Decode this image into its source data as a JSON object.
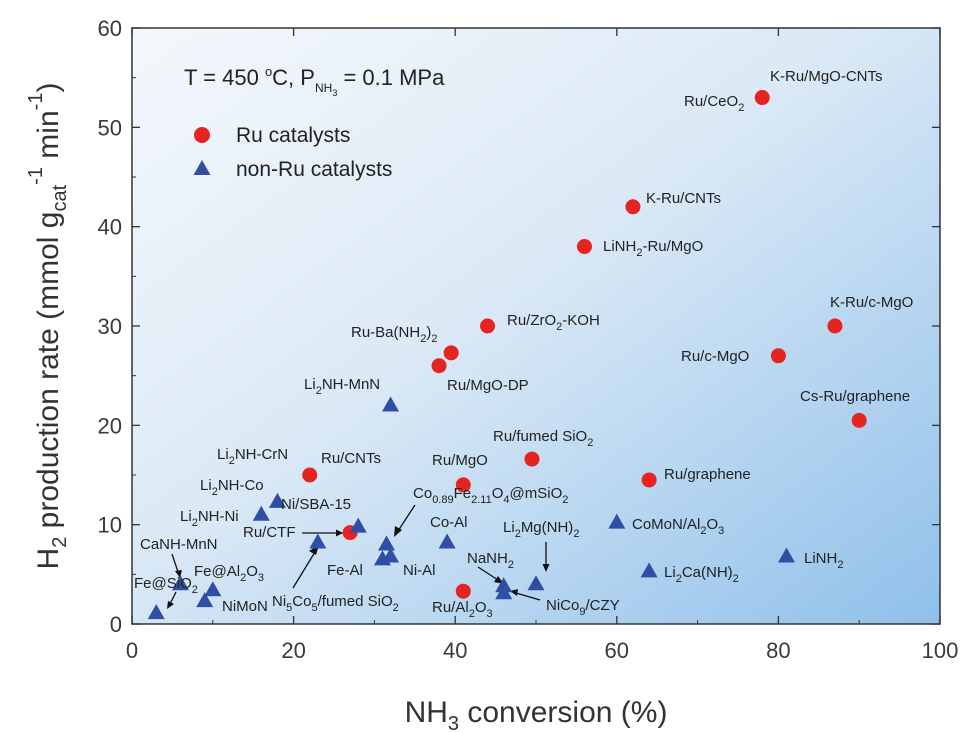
{
  "chart_data": {
    "type": "scatter",
    "xlabel": "NH3 conversion (%)",
    "ylabel": "H2 production rate (mmol gcat-1 min-1)",
    "xlim": [
      0,
      100
    ],
    "ylim": [
      0,
      60
    ],
    "xticks": [
      0,
      20,
      40,
      60,
      80,
      100
    ],
    "yticks": [
      0,
      10,
      20,
      30,
      40,
      50,
      60
    ],
    "grid": false,
    "background": "blue-white gradient",
    "legend_position": "top-left",
    "condition": "T = 450 °C, P NH3 = 0.1 MPa",
    "series": [
      {
        "name": "Ru catalysts",
        "marker": "circle",
        "color": "#e52421",
        "points": [
          {
            "x": 78,
            "y": 53,
            "label": "Ru/CeO2"
          },
          {
            "x": 62,
            "y": 42,
            "label": "K-Ru/CNTs"
          },
          {
            "x": 56,
            "y": 38,
            "label": "LiNH2-Ru/MgO"
          },
          {
            "x": 44,
            "y": 30,
            "label": "Ru/ZrO2-KOH"
          },
          {
            "x": 39.5,
            "y": 27.3,
            "label": "Ru-Ba(NH2)2"
          },
          {
            "x": 38,
            "y": 26,
            "label": "Ru/MgO-DP"
          },
          {
            "x": 87,
            "y": 30,
            "label": "K-Ru/c-MgO"
          },
          {
            "x": 80,
            "y": 27,
            "label": "Ru/c-MgO"
          },
          {
            "x": 90,
            "y": 20.5,
            "label": "Cs-Ru/graphene"
          },
          {
            "x": 49.5,
            "y": 16.6,
            "label": "Ru/fumed SiO2"
          },
          {
            "x": 41,
            "y": 14,
            "label": "Ru/MgO"
          },
          {
            "x": 64,
            "y": 14.5,
            "label": "Ru/graphene"
          },
          {
            "x": 22,
            "y": 15,
            "label": "Ru/CNTs"
          },
          {
            "x": 27,
            "y": 9.2,
            "label": "Ru/CTF"
          },
          {
            "x": 41,
            "y": 3.3,
            "label": "Ru/Al2O3"
          }
        ]
      },
      {
        "name": "non-Ru catalysts",
        "marker": "triangle",
        "color": "#2e4fa3",
        "points": [
          {
            "x": 32,
            "y": 22,
            "label": "Li2NH-MnN"
          },
          {
            "x": 18,
            "y": 12.3,
            "label": "Li2NH-Co"
          },
          {
            "x": 16,
            "y": 11,
            "label": "Li2NH-Ni"
          },
          {
            "x": 28,
            "y": 9.8,
            "label": "Ni/SBA-15"
          },
          {
            "x": 23,
            "y": 8.2,
            "label": "Ni5Co5/fumed SiO2"
          },
          {
            "x": 31.5,
            "y": 8,
            "label": "Co0.89Fe2.11O4@mSiO2"
          },
          {
            "x": 31,
            "y": 6.5,
            "label": "Fe-Al"
          },
          {
            "x": 32,
            "y": 6.8,
            "label": "Ni-Al"
          },
          {
            "x": 39,
            "y": 8.2,
            "label": "Co-Al"
          },
          {
            "x": 60,
            "y": 10.2,
            "label": "CoMoN/Al2O3"
          },
          {
            "x": 50,
            "y": 4,
            "label": "Li2Mg(NH)2"
          },
          {
            "x": 46,
            "y": 3.8,
            "label": "NaNH2"
          },
          {
            "x": 46,
            "y": 3.1,
            "label": "NiCo9/CZY"
          },
          {
            "x": 64,
            "y": 5.3,
            "label": "Li2Ca(NH)2"
          },
          {
            "x": 81,
            "y": 6.8,
            "label": "LiNH2"
          },
          {
            "x": 6,
            "y": 4,
            "label": "CaNH-MnN"
          },
          {
            "x": 10,
            "y": 3.4,
            "label": "Fe@Al2O3"
          },
          {
            "x": 9,
            "y": 2.3,
            "label": "NiMoN"
          },
          {
            "x": 3,
            "y": 1.1,
            "label": "Fe@SiO2"
          }
        ]
      }
    ]
  }
}
